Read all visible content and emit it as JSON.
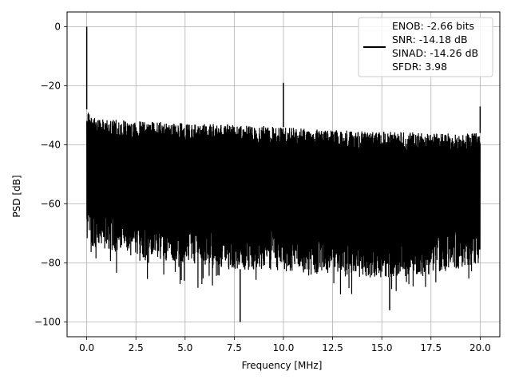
{
  "chart_data": {
    "type": "line",
    "title": "",
    "xlabel": "Frequency [MHz]",
    "ylabel": "PSD [dB]",
    "xlim": [
      -1.0,
      21.0
    ],
    "ylim": [
      -105,
      5
    ],
    "xticks": [
      0.0,
      2.5,
      5.0,
      7.5,
      10.0,
      12.5,
      15.0,
      17.5,
      20.0
    ],
    "xtick_labels": [
      "0.0",
      "2.5",
      "5.0",
      "7.5",
      "10.0",
      "12.5",
      "15.0",
      "17.5",
      "20.0"
    ],
    "yticks": [
      0,
      -20,
      -40,
      -60,
      -80,
      -100
    ],
    "ytick_labels": [
      "0",
      "−20",
      "−40",
      "−60",
      "−80",
      "−100"
    ],
    "grid": true,
    "legend_position": "top-right",
    "series": [
      {
        "name": "ENOB: -2.66 bits\nSNR: -14.18 dB\nSINAD: -14.26 dB\nSFDR: 3.98",
        "color": "#000000",
        "noise_band_upper_dB": [
          [
            0.0,
            -28
          ],
          [
            0.5,
            -31
          ],
          [
            2.5,
            -32
          ],
          [
            5.0,
            -32.5
          ],
          [
            7.5,
            -33
          ],
          [
            10.0,
            -34
          ],
          [
            12.5,
            -35
          ],
          [
            15.0,
            -35.5
          ],
          [
            17.5,
            -36
          ],
          [
            20.0,
            -36
          ]
        ],
        "noise_band_lower_dB": [
          [
            0.0,
            -74
          ],
          [
            2.5,
            -78
          ],
          [
            5.0,
            -80
          ],
          [
            7.5,
            -82
          ],
          [
            10.0,
            -83
          ],
          [
            12.5,
            -84
          ],
          [
            15.0,
            -85
          ],
          [
            17.5,
            -84
          ],
          [
            20.0,
            -80
          ]
        ],
        "peaks": [
          {
            "x": 0.0,
            "y": 0
          },
          {
            "x": 10.0,
            "y": -19
          },
          {
            "x": 20.0,
            "y": -27
          },
          {
            "x": 7.8,
            "y": -100
          },
          {
            "x": 15.4,
            "y": -96
          }
        ]
      }
    ],
    "legend_lines": [
      "ENOB: -2.66 bits",
      "SNR: -14.18 dB",
      "SINAD: -14.26 dB",
      "SFDR: 3.98"
    ]
  }
}
